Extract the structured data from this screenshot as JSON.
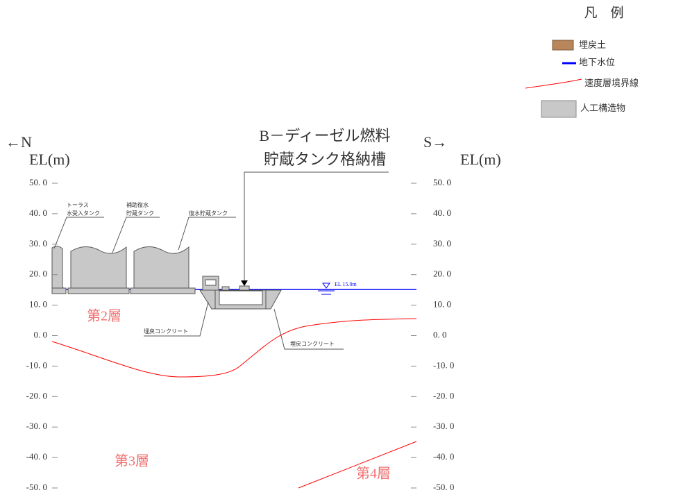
{
  "legend": {
    "title": "凡　例",
    "items": [
      "埋戻土",
      "地下水位",
      "速度層境界線",
      "人工構造物"
    ]
  },
  "title": {
    "line1": "B－ディーゼル燃料",
    "line2": "貯蔵タンク格納槽"
  },
  "north": "←N",
  "south": "S→",
  "left_axis": {
    "label": "EL(m)",
    "ticks": [
      "50. 0",
      "40. 0",
      "30. 0",
      "20. 0",
      "10. 0",
      "0. 0",
      "-10. 0",
      "-20. 0",
      "-30. 0",
      "-40. 0",
      "-50. 0"
    ]
  },
  "right_axis": {
    "label": "EL(m)",
    "ticks": [
      "50. 0",
      "40. 0",
      "30. 0",
      "20. 0",
      "10. 0",
      "0. 0",
      "-10. 0",
      "-20. 0",
      "-30. 0",
      "-40. 0",
      "-50. 0"
    ]
  },
  "structures": [
    {
      "label": [
        "トーラス",
        "水受入タンク"
      ]
    },
    {
      "label": [
        "補助復水",
        "貯蔵タンク"
      ]
    },
    {
      "label": [
        "復水貯蔵タンク"
      ]
    }
  ],
  "water_level": "EL 15.0m",
  "backfill_labels": [
    "埋戻コンクリート",
    "埋戻コンクリート"
  ],
  "layers": [
    "第2層",
    "第3層",
    "第4層"
  ]
}
